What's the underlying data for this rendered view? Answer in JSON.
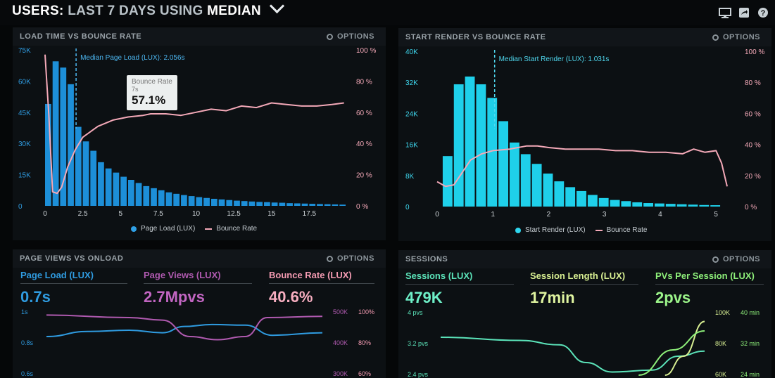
{
  "header": {
    "prefix": "USERS:",
    "middle": "LAST 7 DAYS",
    "using": "USING",
    "mode": "MEDIAN",
    "icons": [
      "monitor-icon",
      "share-icon",
      "help-icon"
    ]
  },
  "common": {
    "options_label": "OPTIONS"
  },
  "panels": {
    "load_bounce": {
      "title": "LOAD TIME VS BOUNCE RATE",
      "median_label": "Median Page Load (LUX): 2.056s",
      "tooltip": {
        "series": "Bounce Rate",
        "x": "7s",
        "value": "57.1%"
      },
      "legend": [
        "Page Load (LUX)",
        "Bounce Rate"
      ]
    },
    "render_bounce": {
      "title": "START RENDER VS BOUNCE RATE",
      "median_label": "Median Start Render (LUX): 1.031s",
      "legend": [
        "Start Render (LUX)",
        "Bounce Rate"
      ]
    },
    "pageviews": {
      "title": "PAGE VIEWS VS ONLOAD",
      "metrics": [
        {
          "label": "Page Load (LUX)",
          "value": "0.7s"
        },
        {
          "label": "Page Views (LUX)",
          "value": "2.7Mpvs"
        },
        {
          "label": "Bounce Rate (LUX)",
          "value": "40.6%"
        }
      ]
    },
    "sessions": {
      "title": "SESSIONS",
      "metrics": [
        {
          "label": "Sessions (LUX)",
          "value": "479K"
        },
        {
          "label": "Session Length (LUX)",
          "value": "17min"
        },
        {
          "label": "PVs Per Session (LUX)",
          "value": "2pvs"
        }
      ]
    }
  },
  "colors": {
    "bar_blue": "#1d8fd8",
    "bar_cyan": "#1fd0ea",
    "bounce_pink": "#f4a9b8",
    "page_load_blue": "#2f9be0",
    "page_views_purple": "#b05ab0",
    "bounce_rate_pink": "#f49bb2",
    "sessions_green": "#5be3b9",
    "session_length_yellow": "#d8ef92",
    "pvs_green": "#8ef07a"
  },
  "chart_data": [
    {
      "type": "bar",
      "title": "LOAD TIME VS BOUNCE RATE",
      "x_ticks": [
        "0",
        "2.5",
        "5",
        "7.5",
        "10",
        "12.5",
        "15",
        "17.5"
      ],
      "xlim": [
        0,
        20
      ],
      "y_left_ticks": [
        "0",
        "15K",
        "30K",
        "45K",
        "60K",
        "75K"
      ],
      "ylim_left": [
        0,
        75000
      ],
      "y_right_ticks": [
        "0 %",
        "20 %",
        "40 %",
        "60 %",
        "80 %",
        "100 %"
      ],
      "ylim_right": [
        0,
        100
      ],
      "bin_width": 0.5,
      "series": [
        {
          "name": "Page Load (LUX)",
          "type": "bar",
          "x_start": 0,
          "values": [
            49000,
            69500,
            66500,
            58500,
            38000,
            31000,
            26500,
            21000,
            18000,
            16000,
            14000,
            12500,
            11000,
            9500,
            8500,
            7500,
            6500,
            5800,
            5200,
            4700,
            4200,
            3800,
            3400,
            3100,
            2800,
            2500,
            2300,
            2100,
            1900,
            1800,
            1600,
            1500,
            1300,
            1200,
            1100,
            1000,
            900,
            800,
            700,
            600
          ]
        },
        {
          "name": "Bounce Rate",
          "type": "line",
          "points": [
            [
              0,
              97
            ],
            [
              0.25,
              58
            ],
            [
              0.5,
              9
            ],
            [
              0.8,
              8
            ],
            [
              1.1,
              12
            ],
            [
              1.5,
              25
            ],
            [
              2,
              36
            ],
            [
              2.5,
              44
            ],
            [
              3.5,
              51
            ],
            [
              4.5,
              55
            ],
            [
              5.5,
              57
            ],
            [
              6.5,
              58
            ],
            [
              7,
              59
            ],
            [
              8,
              59
            ],
            [
              9,
              58
            ],
            [
              10,
              60
            ],
            [
              11,
              62
            ],
            [
              12,
              61
            ],
            [
              13,
              64
            ],
            [
              14,
              63
            ],
            [
              15,
              66
            ],
            [
              16,
              65
            ],
            [
              17,
              64
            ],
            [
              18,
              64
            ],
            [
              19,
              65
            ],
            [
              19.8,
              66
            ]
          ]
        }
      ],
      "median_x": 2.056
    },
    {
      "type": "bar",
      "title": "START RENDER VS BOUNCE RATE",
      "x_ticks": [
        "0",
        "1",
        "2",
        "3",
        "4",
        "5"
      ],
      "xlim": [
        0,
        5.2
      ],
      "y_left_ticks": [
        "0",
        "8K",
        "16K",
        "24K",
        "32K",
        "40K"
      ],
      "ylim_left": [
        0,
        40000
      ],
      "y_right_ticks": [
        "0 %",
        "20 %",
        "40 %",
        "60 %",
        "80 %",
        "100 %"
      ],
      "ylim_right": [
        0,
        100
      ],
      "bin_width": 0.2,
      "series": [
        {
          "name": "Start Render (LUX)",
          "type": "bar",
          "x_start": 0.1,
          "values": [
            13000,
            31500,
            33500,
            31500,
            28000,
            22000,
            16500,
            13500,
            11000,
            8500,
            6500,
            5000,
            4000,
            3000,
            2200,
            1700,
            1400,
            1100,
            900,
            800,
            700,
            600,
            500,
            400,
            350
          ]
        },
        {
          "name": "Bounce Rate",
          "type": "line",
          "points": [
            [
              0,
              16
            ],
            [
              0.15,
              13
            ],
            [
              0.3,
              14
            ],
            [
              0.45,
              22
            ],
            [
              0.6,
              30
            ],
            [
              0.8,
              34
            ],
            [
              1,
              36
            ],
            [
              1.3,
              37
            ],
            [
              1.6,
              39
            ],
            [
              1.8,
              39
            ],
            [
              2,
              38
            ],
            [
              2.3,
              37
            ],
            [
              2.6,
              37
            ],
            [
              2.9,
              37
            ],
            [
              3.2,
              36
            ],
            [
              3.5,
              36
            ],
            [
              3.8,
              35
            ],
            [
              4.1,
              35
            ],
            [
              4.4,
              34
            ],
            [
              4.6,
              37
            ],
            [
              4.8,
              35
            ],
            [
              5,
              36
            ],
            [
              5.1,
              28
            ],
            [
              5.2,
              13
            ]
          ]
        }
      ],
      "median_x": 1.031
    },
    {
      "type": "line",
      "title": "PAGE VIEWS VS ONLOAD",
      "y_left_ticks": [
        "1s",
        "0.8s",
        "0.6s"
      ],
      "y_right_ticks_a": [
        "500K",
        "400K",
        "300K"
      ],
      "y_right_ticks_b": [
        "100%",
        "80%",
        "60%"
      ],
      "series": [
        {
          "name": "Page Load (LUX)",
          "points": [
            [
              0,
              0.6
            ],
            [
              0.15,
              0.68
            ],
            [
              0.3,
              0.7
            ],
            [
              0.42,
              0.66
            ],
            [
              0.5,
              0.76
            ],
            [
              0.6,
              0.79
            ],
            [
              0.72,
              0.78
            ],
            [
              0.82,
              0.62
            ],
            [
              1,
              0.66
            ]
          ]
        },
        {
          "name": "Page Views (LUX)",
          "points": [
            [
              0,
              0.94
            ],
            [
              0.3,
              0.9
            ],
            [
              0.42,
              0.86
            ],
            [
              0.52,
              0.6
            ],
            [
              0.62,
              0.55
            ],
            [
              0.72,
              0.6
            ],
            [
              0.8,
              0.9
            ],
            [
              1,
              0.92
            ]
          ]
        }
      ]
    },
    {
      "type": "line",
      "title": "SESSIONS",
      "y_left_ticks": [
        "4 pvs",
        "3.2 pvs",
        "2.4 pvs"
      ],
      "y_right_ticks_a": [
        "100K",
        "80K",
        "60K"
      ],
      "y_right_ticks_b": [
        "40 min",
        "32 min",
        "24 min"
      ],
      "series": [
        {
          "name": "Sessions (LUX)",
          "points": [
            [
              0,
              0.6
            ],
            [
              0.3,
              0.55
            ],
            [
              0.45,
              0.48
            ],
            [
              0.55,
              0.2
            ],
            [
              0.65,
              0.05
            ],
            [
              0.8,
              0.08
            ],
            [
              0.9,
              0.3
            ],
            [
              1,
              0.38
            ]
          ]
        },
        {
          "name": "Session Length (LUX)",
          "points": [
            [
              0.85,
              0.0
            ],
            [
              0.92,
              0.3
            ],
            [
              1,
              0.85
            ]
          ]
        },
        {
          "name": "PVs Per Session (LUX)",
          "points": [
            [
              0.75,
              0.0
            ],
            [
              0.88,
              0.4
            ],
            [
              1,
              0.7
            ]
          ]
        }
      ]
    }
  ]
}
